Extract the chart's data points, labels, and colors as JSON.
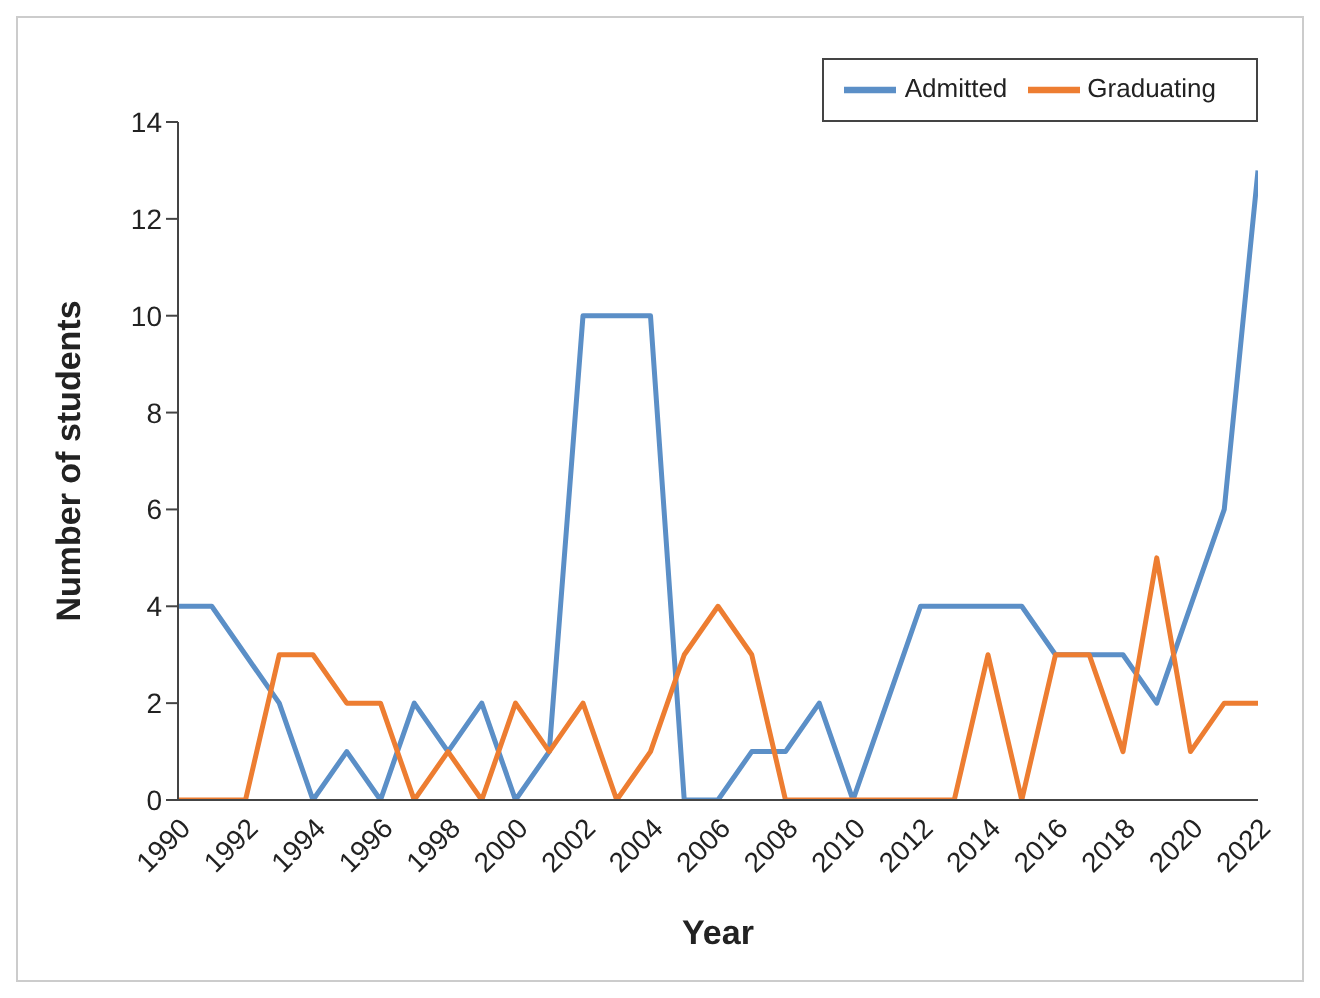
{
  "chart_data": {
    "type": "line",
    "xlabel": "Year",
    "ylabel": "Number of students",
    "x": [
      1990,
      1991,
      1992,
      1993,
      1994,
      1995,
      1996,
      1997,
      1998,
      1999,
      2000,
      2001,
      2002,
      2003,
      2004,
      2005,
      2006,
      2007,
      2008,
      2009,
      2010,
      2011,
      2012,
      2013,
      2014,
      2015,
      2016,
      2017,
      2018,
      2019,
      2020,
      2021,
      2022
    ],
    "series": [
      {
        "name": "Admitted",
        "color": "#5b8fc7",
        "values": [
          4,
          4,
          3,
          2,
          0,
          1,
          0,
          2,
          1,
          2,
          0,
          1,
          10,
          10,
          10,
          0,
          0,
          1,
          1,
          2,
          0,
          2,
          4,
          4,
          4,
          4,
          3,
          3,
          3,
          2,
          4,
          6,
          13
        ]
      },
      {
        "name": "Graduating",
        "color": "#ed7d31",
        "values": [
          0,
          0,
          0,
          3,
          3,
          2,
          2,
          0,
          1,
          0,
          2,
          1,
          2,
          0,
          1,
          3,
          4,
          3,
          0,
          0,
          0,
          0,
          0,
          0,
          3,
          0,
          3,
          3,
          1,
          5,
          1,
          2,
          2
        ]
      }
    ],
    "xlim": [
      1990,
      2022
    ],
    "xticks": [
      1990,
      1992,
      1994,
      1996,
      1998,
      2000,
      2002,
      2004,
      2006,
      2008,
      2010,
      2012,
      2014,
      2016,
      2018,
      2020,
      2022
    ],
    "ylim": [
      0,
      14
    ],
    "yticks": [
      0,
      2,
      4,
      6,
      8,
      10,
      12,
      14
    ],
    "grid": false,
    "legend": "top right",
    "marker": "none",
    "line_style": "solid"
  }
}
